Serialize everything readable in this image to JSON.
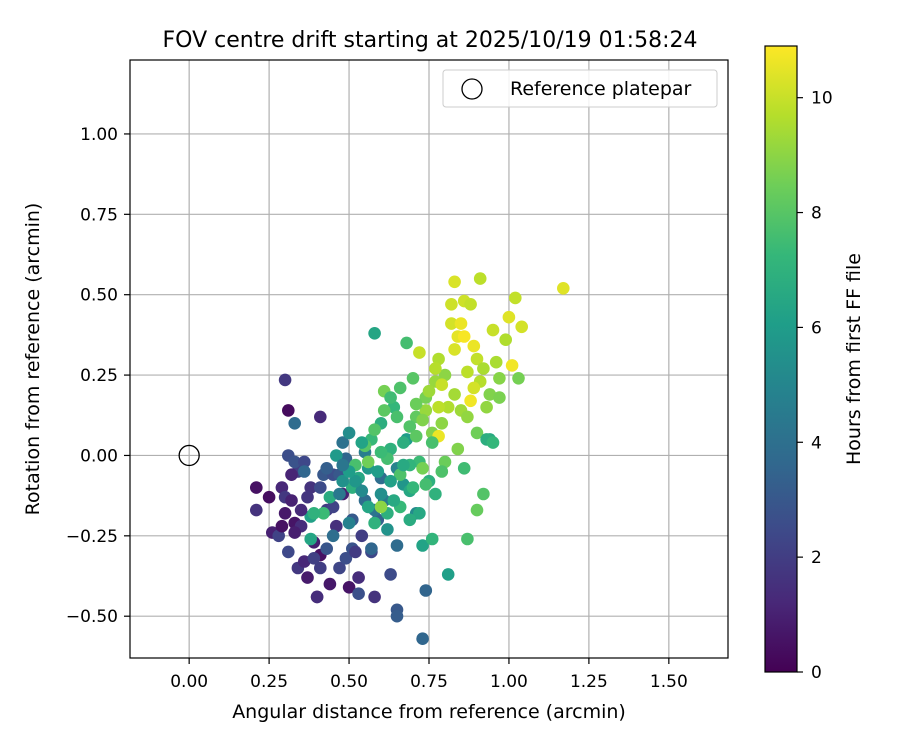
{
  "chart_data": {
    "type": "scatter",
    "title": "FOV centre drift starting at 2025/10/19 01:58:24",
    "xlabel": "Angular distance from reference (arcmin)",
    "ylabel": "Rotation from reference (arcmin)",
    "xlim": [
      -0.185,
      1.685
    ],
    "ylim": [
      -0.63,
      1.23
    ],
    "x_ticks": [
      0.0,
      0.25,
      0.5,
      0.75,
      1.0,
      1.25,
      1.5
    ],
    "x_tick_labels": [
      "0.00",
      "0.25",
      "0.50",
      "0.75",
      "1.00",
      "1.25",
      "1.50"
    ],
    "y_ticks": [
      -0.5,
      -0.25,
      0.0,
      0.25,
      0.5,
      0.75,
      1.0
    ],
    "y_tick_labels": [
      "−0.50",
      "−0.25",
      "0.00",
      "0.25",
      "0.50",
      "0.75",
      "1.00"
    ],
    "grid": true,
    "legend": {
      "position": "top-right",
      "label": "Reference platepar"
    },
    "reference_point": {
      "x": 0.0,
      "y": 0.0
    },
    "colorbar": {
      "label": "Hours from first FF file",
      "min": 0,
      "max": 10.9,
      "ticks": [
        0,
        2,
        4,
        6,
        8,
        10
      ],
      "tick_labels": [
        "0",
        "2",
        "4",
        "6",
        "8",
        "10"
      ],
      "colormap": [
        "#440154",
        "#482878",
        "#3e4989",
        "#31688e",
        "#26828e",
        "#1f9e89",
        "#35b779",
        "#6ece58",
        "#b5de2b",
        "#fde725"
      ]
    },
    "points": [
      [
        0.31,
        0.14,
        0.3
      ],
      [
        0.3,
        0.235,
        1.8
      ],
      [
        0.21,
        -0.1,
        0.5
      ],
      [
        0.21,
        -0.17,
        1.6
      ],
      [
        0.25,
        -0.13,
        0.4
      ],
      [
        0.26,
        -0.24,
        1.0
      ],
      [
        0.28,
        -0.25,
        2.2
      ],
      [
        0.29,
        -0.1,
        1.2
      ],
      [
        0.3,
        -0.13,
        1.8
      ],
      [
        0.31,
        -0.3,
        2.4
      ],
      [
        0.32,
        -0.14,
        1.0
      ],
      [
        0.33,
        -0.21,
        0.6
      ],
      [
        0.34,
        -0.05,
        2.0
      ],
      [
        0.34,
        -0.35,
        1.8
      ],
      [
        0.35,
        -0.22,
        1.4
      ],
      [
        0.36,
        -0.33,
        1.2
      ],
      [
        0.37,
        -0.38,
        0.8
      ],
      [
        0.38,
        -0.1,
        1.6
      ],
      [
        0.39,
        -0.27,
        0.9
      ],
      [
        0.4,
        -0.44,
        1.1
      ],
      [
        0.41,
        -0.31,
        0.5
      ],
      [
        0.41,
        0.12,
        1.3
      ],
      [
        0.42,
        -0.06,
        3.0
      ],
      [
        0.43,
        -0.17,
        1.9
      ],
      [
        0.44,
        -0.4,
        0.7
      ],
      [
        0.45,
        -0.06,
        2.6
      ],
      [
        0.46,
        -0.22,
        1.5
      ],
      [
        0.47,
        -0.35,
        2.3
      ],
      [
        0.48,
        -0.12,
        1.0
      ],
      [
        0.49,
        -0.01,
        3.6
      ],
      [
        0.5,
        -0.41,
        0.6
      ],
      [
        0.51,
        -0.29,
        2.8
      ],
      [
        0.52,
        -0.09,
        3.2
      ],
      [
        0.53,
        -0.38,
        1.4
      ],
      [
        0.54,
        -0.25,
        2.0
      ],
      [
        0.55,
        -0.14,
        3.8
      ],
      [
        0.57,
        -0.3,
        2.4
      ],
      [
        0.58,
        -0.44,
        1.6
      ],
      [
        0.59,
        -0.2,
        3.4
      ],
      [
        0.6,
        -0.07,
        3.9
      ],
      [
        0.31,
        0.0,
        2.6
      ],
      [
        0.33,
        0.1,
        3.8
      ],
      [
        0.33,
        -0.02,
        2.8
      ],
      [
        0.36,
        -0.02,
        2.4
      ],
      [
        0.38,
        -0.19,
        6.2
      ],
      [
        0.4,
        -0.44,
        1.4
      ],
      [
        0.41,
        -0.35,
        2.0
      ],
      [
        0.43,
        -0.04,
        3.3
      ],
      [
        0.45,
        -0.16,
        2.2
      ],
      [
        0.47,
        -0.06,
        3.0
      ],
      [
        0.48,
        0.04,
        4.1
      ],
      [
        0.49,
        -0.32,
        2.6
      ],
      [
        0.5,
        0.07,
        5.3
      ],
      [
        0.51,
        -0.2,
        3.1
      ],
      [
        0.52,
        -0.3,
        1.9
      ],
      [
        0.53,
        -0.43,
        2.7
      ],
      [
        0.55,
        0.01,
        4.6
      ],
      [
        0.56,
        -0.04,
        5.8
      ],
      [
        0.57,
        -0.29,
        3.6
      ],
      [
        0.58,
        -0.17,
        4.2
      ],
      [
        0.58,
        0.38,
        6.4
      ],
      [
        0.6,
        0.1,
        6.8
      ],
      [
        0.61,
        -0.14,
        4.4
      ],
      [
        0.62,
        -0.23,
        5.6
      ],
      [
        0.63,
        -0.37,
        2.5
      ],
      [
        0.64,
        0.15,
        7.2
      ],
      [
        0.65,
        -0.04,
        4.9
      ],
      [
        0.65,
        -0.28,
        3.8
      ],
      [
        0.66,
        0.21,
        7.8
      ],
      [
        0.67,
        -0.09,
        5.7
      ],
      [
        0.68,
        0.05,
        6.0
      ],
      [
        0.68,
        0.35,
        7.6
      ],
      [
        0.69,
        -0.11,
        6.5
      ],
      [
        0.7,
        0.24,
        8.0
      ],
      [
        0.71,
        -0.18,
        5.2
      ],
      [
        0.71,
        0.12,
        8.2
      ],
      [
        0.72,
        -0.02,
        7.4
      ],
      [
        0.73,
        -0.28,
        6.3
      ],
      [
        0.74,
        -0.42,
        3.5
      ],
      [
        0.74,
        0.18,
        8.6
      ],
      [
        0.75,
        -0.08,
        6.9
      ],
      [
        0.76,
        0.07,
        8.8
      ],
      [
        0.77,
        0.23,
        9.2
      ],
      [
        0.77,
        -0.12,
        7.0
      ],
      [
        0.78,
        0.3,
        9.6
      ],
      [
        0.79,
        0.1,
        9.0
      ],
      [
        0.8,
        -0.02,
        8.4
      ],
      [
        0.81,
        -0.37,
        6.1
      ],
      [
        0.82,
        0.41,
        10.2
      ],
      [
        0.83,
        0.19,
        9.4
      ],
      [
        0.83,
        0.54,
        10.3
      ],
      [
        0.84,
        0.37,
        10.5
      ],
      [
        0.85,
        0.14,
        9.3
      ],
      [
        0.86,
        -0.04,
        7.5
      ],
      [
        0.86,
        0.48,
        10.1
      ],
      [
        0.87,
        0.26,
        9.8
      ],
      [
        0.87,
        -0.26,
        7.7
      ],
      [
        0.88,
        0.47,
        9.9
      ],
      [
        0.89,
        0.34,
        10.6
      ],
      [
        0.9,
        0.07,
        8.5
      ],
      [
        0.9,
        -0.17,
        8.3
      ],
      [
        0.91,
        0.23,
        9.7
      ],
      [
        0.91,
        0.55,
        9.8
      ],
      [
        0.92,
        -0.12,
        7.9
      ],
      [
        0.93,
        0.15,
        9.1
      ],
      [
        0.94,
        0.19,
        8.8
      ],
      [
        0.94,
        0.05,
        6.6
      ],
      [
        0.95,
        0.39,
        10.0
      ],
      [
        0.96,
        0.29,
        9.5
      ],
      [
        0.97,
        0.24,
        8.9
      ],
      [
        0.99,
        0.36,
        9.6
      ],
      [
        1.0,
        0.43,
        10.4
      ],
      [
        1.01,
        0.28,
        10.7
      ],
      [
        1.02,
        0.49,
        9.9
      ],
      [
        1.03,
        0.24,
        8.6
      ],
      [
        1.04,
        0.4,
        10.2
      ],
      [
        1.17,
        0.52,
        10.4
      ],
      [
        0.74,
        0.14,
        9.2
      ],
      [
        0.72,
        0.32,
        10.0
      ],
      [
        0.78,
        0.06,
        10.6
      ],
      [
        0.8,
        0.25,
        9.0
      ],
      [
        0.82,
        0.47,
        10.1
      ],
      [
        0.84,
        0.02,
        8.8
      ],
      [
        0.86,
        0.37,
        10.8
      ],
      [
        0.88,
        0.17,
        10.7
      ],
      [
        0.9,
        0.3,
        9.9
      ],
      [
        0.93,
        0.05,
        6.8
      ],
      [
        0.79,
        -0.05,
        7.8
      ],
      [
        0.72,
        -0.18,
        6.5
      ],
      [
        0.7,
        -0.1,
        7.2
      ],
      [
        0.66,
        -0.06,
        7.8
      ],
      [
        0.63,
        0.02,
        7.0
      ],
      [
        0.61,
        0.2,
        8.6
      ],
      [
        0.59,
        -0.05,
        6.0
      ],
      [
        0.57,
        0.05,
        7.3
      ],
      [
        0.55,
        0.03,
        8.0
      ],
      [
        0.53,
        -0.07,
        6.5
      ],
      [
        0.51,
        -0.1,
        6.9
      ],
      [
        0.48,
        -0.08,
        5.5
      ],
      [
        0.46,
        0.0,
        5.9
      ],
      [
        0.44,
        -0.13,
        6.7
      ],
      [
        0.42,
        -0.18,
        7.4
      ],
      [
        0.39,
        -0.18,
        7.0
      ],
      [
        0.38,
        -0.26,
        6.4
      ],
      [
        0.36,
        -0.05,
        3.6
      ],
      [
        0.65,
        -0.48,
        3.0
      ],
      [
        0.65,
        -0.5,
        3.2
      ],
      [
        0.73,
        -0.57,
        3.6
      ],
      [
        0.76,
        -0.26,
        7.1
      ],
      [
        0.69,
        -0.2,
        6.7
      ],
      [
        0.66,
        -0.16,
        7.3
      ],
      [
        0.63,
        -0.08,
        6.2
      ],
      [
        0.62,
        -0.01,
        7.6
      ],
      [
        0.6,
        -0.12,
        5.4
      ],
      [
        0.58,
        -0.21,
        7.0
      ],
      [
        0.56,
        -0.16,
        6.4
      ],
      [
        0.54,
        -0.11,
        5.2
      ],
      [
        0.52,
        -0.03,
        7.7
      ],
      [
        0.5,
        -0.21,
        4.8
      ],
      [
        0.47,
        -0.12,
        4.4
      ],
      [
        0.45,
        -0.25,
        3.9
      ],
      [
        0.43,
        -0.29,
        2.9
      ],
      [
        0.41,
        -0.1,
        2.5
      ],
      [
        0.39,
        -0.32,
        2.1
      ],
      [
        0.37,
        -0.13,
        1.7
      ],
      [
        0.35,
        -0.17,
        1.3
      ],
      [
        0.33,
        -0.24,
        0.9
      ],
      [
        0.32,
        -0.06,
        1.1
      ],
      [
        0.3,
        -0.18,
        0.7
      ],
      [
        0.29,
        -0.22,
        0.5
      ],
      [
        0.67,
        0.04,
        6.8
      ],
      [
        0.69,
        0.09,
        7.9
      ],
      [
        0.71,
        0.16,
        8.4
      ],
      [
        0.73,
        0.11,
        8.8
      ],
      [
        0.75,
        0.2,
        9.3
      ],
      [
        0.77,
        0.27,
        9.7
      ],
      [
        0.79,
        0.22,
        10.0
      ],
      [
        0.81,
        0.15,
        9.6
      ],
      [
        0.83,
        0.33,
        10.3
      ],
      [
        0.85,
        0.41,
        10.6
      ],
      [
        0.87,
        0.12,
        9.1
      ],
      [
        0.89,
        0.21,
        10.2
      ],
      [
        0.92,
        0.27,
        9.5
      ],
      [
        0.95,
        0.04,
        7.2
      ],
      [
        0.97,
        0.18,
        8.7
      ],
      [
        0.65,
        0.12,
        7.7
      ],
      [
        0.63,
        0.18,
        7.5
      ],
      [
        0.61,
        0.14,
        8.1
      ],
      [
        0.6,
        0.01,
        7.4
      ],
      [
        0.58,
        0.08,
        7.9
      ],
      [
        0.56,
        -0.02,
        8.5
      ],
      [
        0.54,
        0.04,
        6.3
      ],
      [
        0.52,
        -0.08,
        5.7
      ],
      [
        0.5,
        -0.05,
        6.0
      ],
      [
        0.48,
        -0.03,
        4.3
      ],
      [
        0.69,
        -0.03,
        7.1
      ],
      [
        0.71,
        0.06,
        8.1
      ],
      [
        0.73,
        -0.04,
        8.6
      ],
      [
        0.67,
        -0.03,
        6.6
      ],
      [
        0.64,
        -0.14,
        6.6
      ],
      [
        0.62,
        -0.18,
        6.9
      ],
      [
        0.6,
        -0.16,
        9.0
      ],
      [
        0.74,
        -0.09,
        7.6
      ],
      [
        0.76,
        0.04,
        7.7
      ],
      [
        0.78,
        0.15,
        9.8
      ]
    ]
  }
}
